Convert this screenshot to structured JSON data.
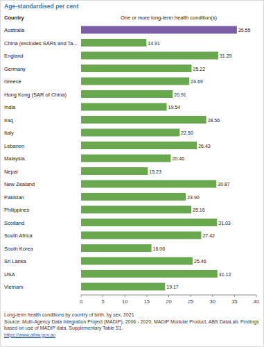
{
  "chart_data": {
    "type": "bar",
    "orientation": "horizontal",
    "title": "Age-standardised per cent",
    "y_label": "Country",
    "x_label": "One or more long-term health condition(s)",
    "categories": [
      "Australia",
      "China (excludes SARs and Ta...",
      "England",
      "Germany",
      "Greece",
      "Hong Kong (SAR of China)",
      "India",
      "Iraq",
      "Italy",
      "Lebanon",
      "Malaysia",
      "Nepal",
      "New Zealand",
      "Pakistan",
      "Philippines",
      "Scotland",
      "South Africa",
      "South Korea",
      "Sri Lanka",
      "USA",
      "Vietnam"
    ],
    "values": [
      35.55,
      14.91,
      31.29,
      25.22,
      24.69,
      20.91,
      19.54,
      28.56,
      22.5,
      26.43,
      20.46,
      15.23,
      30.87,
      23.9,
      25.16,
      31.03,
      27.42,
      16.06,
      25.46,
      31.12,
      19.17
    ],
    "value_labels": [
      "35.55",
      "14.91",
      "31.29",
      "25.22",
      "24.69",
      "20.91",
      "19.54",
      "28.56",
      "22.50",
      "26.43",
      "20.46",
      "15.23",
      "30.87",
      "23.90",
      "25.16",
      "31.03",
      "27.42",
      "16.06",
      "25.46",
      "31.12",
      "19.17"
    ],
    "colors": [
      "#7b5ea7",
      "#6aa84f",
      "#6aa84f",
      "#6aa84f",
      "#6aa84f",
      "#6aa84f",
      "#6aa84f",
      "#6aa84f",
      "#6aa84f",
      "#6aa84f",
      "#6aa84f",
      "#6aa84f",
      "#6aa84f",
      "#6aa84f",
      "#6aa84f",
      "#6aa84f",
      "#6aa84f",
      "#6aa84f",
      "#6aa84f",
      "#6aa84f",
      "#6aa84f"
    ],
    "xlim": [
      0,
      40
    ],
    "xticks": [
      0,
      5,
      10,
      15,
      20,
      25,
      30,
      35,
      40
    ],
    "grid": false,
    "data_labels": true,
    "caption": "Long-term health conditions by country of birth, by sex, 2021",
    "source": "Source: Multi-Agency Data Integration Project (MADIP), 2006 - 2020, MADIP Modular Product, ABS DataLab. Findings based on use of MADIP data. Supplementary Table S1.",
    "url": "https://www.aihw.gov.au"
  }
}
